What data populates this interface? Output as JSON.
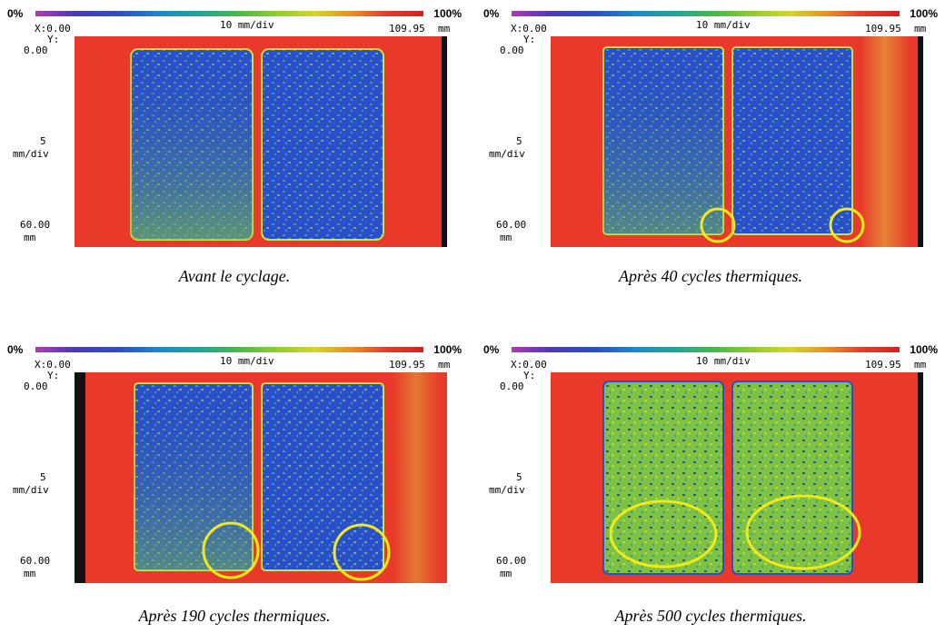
{
  "figure": {
    "scale_left": "0%",
    "scale_right": "100%",
    "x_origin": "X:0.00",
    "x_div": "10 mm/div",
    "x_max": "109.95",
    "x_unit": "mm",
    "y_label": "Y:",
    "y_origin": "0.00",
    "y_div_value": "5",
    "y_div_unit": "mm/div",
    "y_max": "60.00",
    "y_unit": "mm",
    "colors": {
      "background_red": "#e8392a",
      "blue": "#2b4fc8",
      "green": "#7fc243",
      "yellow_circle": "#f2ea17"
    },
    "panels": [
      {
        "caption": "Avant le cyclage.",
        "circles": 0
      },
      {
        "caption": "Après 40 cycles thermiques.",
        "circles": 2
      },
      {
        "caption": "Après 190 cycles thermiques.",
        "circles": 2
      },
      {
        "caption": "Après 500 cycles thermiques.",
        "circles": 2
      }
    ]
  }
}
